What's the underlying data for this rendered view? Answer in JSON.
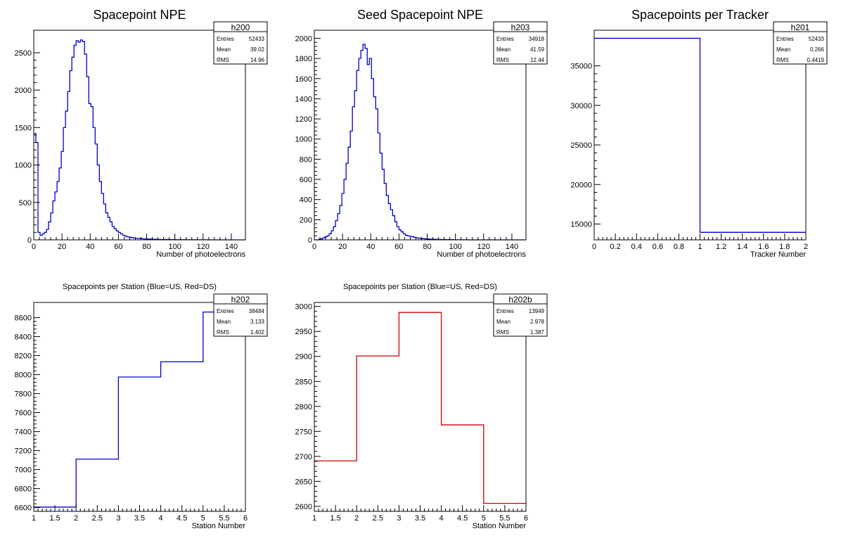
{
  "chart_data": [
    {
      "id": "h200",
      "type": "histogram",
      "title": "Spacepoint NPE",
      "xlabel": "Number of photoelectrons",
      "ylabel": "",
      "xlim": [
        0,
        150
      ],
      "ylim": [
        0,
        2800
      ],
      "xticks": [
        0,
        20,
        40,
        60,
        80,
        100,
        120,
        140
      ],
      "yticks": [
        0,
        500,
        1000,
        1500,
        2000,
        2500
      ],
      "line_color": "#0000cc",
      "bin_edges_start": 0,
      "bin_width": 1.5,
      "values": [
        1420,
        1300,
        100,
        60,
        80,
        100,
        140,
        240,
        360,
        520,
        640,
        780,
        960,
        1180,
        1500,
        1720,
        1980,
        2260,
        2440,
        2600,
        2660,
        2640,
        2670,
        2650,
        2480,
        2180,
        1820,
        1780,
        1500,
        1280,
        1000,
        780,
        620,
        480,
        360,
        300,
        240,
        180,
        150,
        120,
        100,
        80,
        60,
        50,
        40,
        35,
        30,
        25,
        20,
        20,
        18,
        15,
        12,
        12,
        10,
        10,
        8,
        8,
        6,
        6,
        5,
        5,
        4,
        4,
        3,
        3,
        3,
        2,
        2,
        2,
        2,
        2,
        1,
        1,
        1,
        1,
        1,
        1,
        1,
        1,
        1,
        1,
        0,
        0,
        0,
        0,
        0,
        0,
        0,
        0,
        0,
        0,
        0,
        0,
        0,
        0,
        0,
        0,
        0,
        0
      ],
      "stats": {
        "name": "h200",
        "rows": [
          [
            "Entries",
            "52433"
          ],
          [
            "Mean",
            "39.02"
          ],
          [
            "RMS",
            "14.96"
          ]
        ]
      }
    },
    {
      "id": "h203",
      "type": "histogram",
      "title": "Seed Spacepoint NPE",
      "xlabel": "Number of photoelectrons",
      "ylabel": "",
      "xlim": [
        0,
        150
      ],
      "ylim": [
        0,
        2080
      ],
      "xticks": [
        0,
        20,
        40,
        60,
        80,
        100,
        120,
        140
      ],
      "yticks": [
        0,
        200,
        400,
        600,
        800,
        1000,
        1200,
        1400,
        1600,
        1800,
        2000
      ],
      "line_color": "#0000cc",
      "bin_edges_start": 0,
      "bin_width": 1.5,
      "values": [
        0,
        0,
        5,
        10,
        20,
        30,
        40,
        60,
        90,
        130,
        190,
        260,
        340,
        460,
        600,
        760,
        920,
        1080,
        1320,
        1480,
        1680,
        1800,
        1880,
        1940,
        1900,
        1740,
        1800,
        1600,
        1420,
        1300,
        1060,
        860,
        700,
        560,
        440,
        360,
        300,
        240,
        180,
        130,
        100,
        80,
        60,
        45,
        40,
        35,
        30,
        25,
        20,
        16,
        14,
        12,
        10,
        9,
        8,
        7,
        6,
        5,
        4,
        4,
        3,
        3,
        2,
        2,
        2,
        2,
        1,
        1,
        1,
        1,
        1,
        1,
        1,
        0,
        0,
        0,
        0,
        0,
        0,
        0,
        0,
        0,
        0,
        0,
        0,
        0,
        0,
        0,
        0,
        0,
        0,
        0,
        0,
        0,
        0,
        0,
        0,
        0,
        0,
        0
      ],
      "stats": {
        "name": "h203",
        "rows": [
          [
            "Entries",
            "34918"
          ],
          [
            "Mean",
            "41.59"
          ],
          [
            "RMS",
            "12.44"
          ]
        ]
      }
    },
    {
      "id": "h201",
      "type": "histogram",
      "title": "Spacepoints per Tracker",
      "xlabel": "Tracker Number",
      "ylabel": "",
      "xlim": [
        0,
        2
      ],
      "ylim": [
        13000,
        39500
      ],
      "xticks": [
        0,
        0.2,
        0.4,
        0.6,
        0.8,
        1,
        1.2,
        1.4,
        1.6,
        1.8,
        2
      ],
      "yticks": [
        15000,
        20000,
        25000,
        30000,
        35000
      ],
      "line_color": "#0000cc",
      "bin_edges_start": 0,
      "bin_width": 1,
      "values": [
        38484,
        13949
      ],
      "stats": {
        "name": "h201",
        "rows": [
          [
            "Entries",
            "52433"
          ],
          [
            "Mean",
            "0.266"
          ],
          [
            "RMS",
            "0.4419"
          ]
        ]
      }
    },
    {
      "id": "h202",
      "type": "histogram",
      "title": "Spacepoints per Station (Blue=US, Red=DS)",
      "xlabel": "Station Number",
      "ylabel": "",
      "xlim": [
        1,
        6
      ],
      "ylim": [
        6560,
        8760
      ],
      "xticks": [
        1,
        1.5,
        2,
        2.5,
        3,
        3.5,
        4,
        4.5,
        5,
        5.5,
        6
      ],
      "yticks": [
        6600,
        6800,
        7000,
        7200,
        7400,
        7600,
        7800,
        8000,
        8200,
        8400,
        8600
      ],
      "line_color": "#0000cc",
      "bin_edges_start": 1,
      "bin_width": 1,
      "values": [
        6605,
        7110,
        7975,
        8135,
        8659
      ],
      "stats": {
        "name": "h202",
        "rows": [
          [
            "Entries",
            "38484"
          ],
          [
            "Mean",
            "3.133"
          ],
          [
            "RMS",
            "1.402"
          ]
        ]
      }
    },
    {
      "id": "h202b",
      "type": "histogram",
      "title": "Spacepoints per Station (Blue=US, Red=DS)",
      "xlabel": "Station Number",
      "ylabel": "",
      "xlim": [
        1,
        6
      ],
      "ylim": [
        2590,
        3008
      ],
      "xticks": [
        1,
        1.5,
        2,
        2.5,
        3,
        3.5,
        4,
        4.5,
        5,
        5.5,
        6
      ],
      "yticks": [
        2600,
        2650,
        2700,
        2750,
        2800,
        2850,
        2900,
        2950,
        3000
      ],
      "line_color": "#cc0000",
      "bin_edges_start": 1,
      "bin_width": 1,
      "values": [
        2691,
        2901,
        2988,
        2763,
        2606
      ],
      "stats": {
        "name": "h202b",
        "rows": [
          [
            "Entries",
            "13949"
          ],
          [
            "Mean",
            "2.978"
          ],
          [
            "RMS",
            "1.387"
          ]
        ]
      }
    }
  ]
}
